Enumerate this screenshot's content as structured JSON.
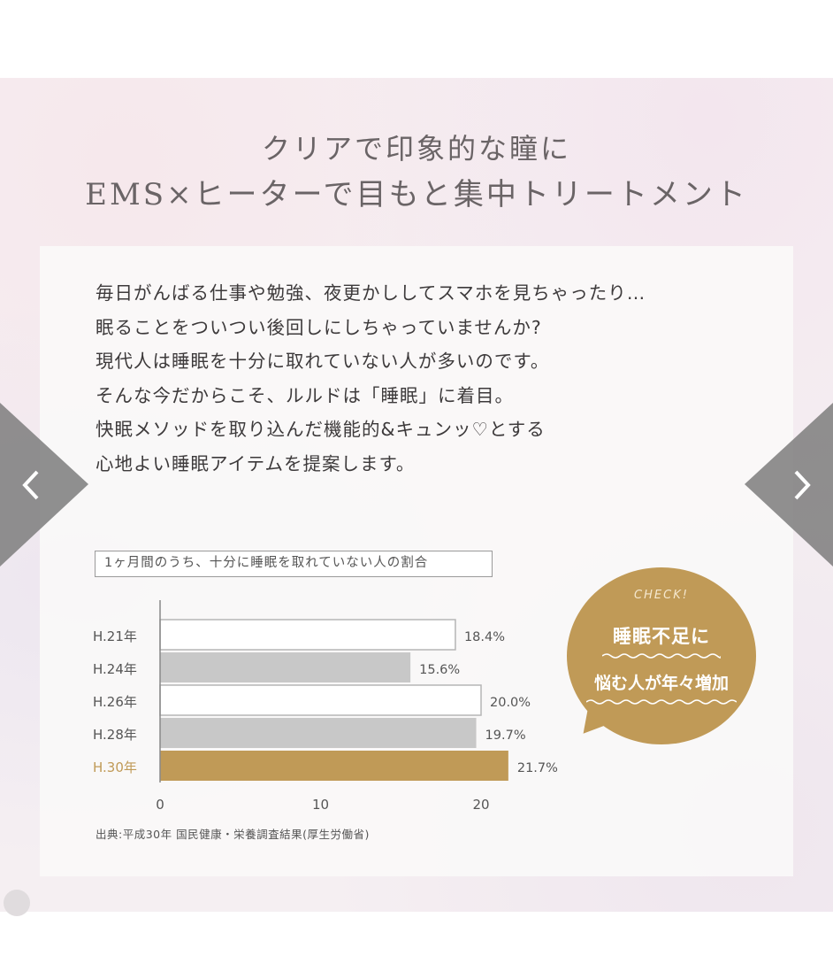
{
  "heading": {
    "line1": "クリアで印象的な瞳に",
    "line2": "EMS×ヒーターで目もと集中トリートメント"
  },
  "intro_lines": [
    "毎日がんばる仕事や勉強、夜更かししてスマホを見ちゃったり…",
    "眠ることをついつい後回しにしちゃっていませんか?",
    "現代人は睡眠を十分に取れていない人が多いのです。",
    "そんな今だからこそ、ルルドは「睡眠」に着目。",
    "快眠メソッドを取り込んだ機能的&キュンッ♡とする",
    "心地よい睡眠アイテムを提案します。"
  ],
  "chart_data": {
    "type": "bar",
    "orientation": "horizontal",
    "title": "1ヶ月間のうち、十分に睡眠を取れていない人の割合",
    "categories": [
      "H.21年",
      "H.24年",
      "H.26年",
      "H.28年",
      "H.30年"
    ],
    "values": [
      18.4,
      15.6,
      20.0,
      19.7,
      21.7
    ],
    "value_labels": [
      "18.4%",
      "15.6%",
      "20.0%",
      "19.7%",
      "21.7%"
    ],
    "xlim": [
      0,
      30
    ],
    "xticks": [
      "0",
      "10",
      "20",
      "30"
    ],
    "xunit": "%",
    "bar_colors": [
      "#ffffff",
      "#c8c8c8",
      "#ffffff",
      "#c8c8c8",
      "#c09a57"
    ],
    "highlight_label_color": "#c09a57",
    "source": "出典:平成30年 国民健康・栄養調査結果(厚生労働省)"
  },
  "callout": {
    "check": "CHECK!",
    "line1": "睡眠不足に",
    "line2": "悩む人が年々増加",
    "color": "#c09a57"
  },
  "carousel": {
    "prev_icon": "chevron-left-icon",
    "next_icon": "chevron-right-icon"
  }
}
